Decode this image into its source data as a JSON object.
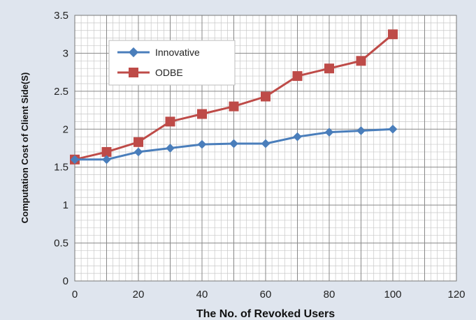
{
  "chart_data": {
    "type": "line",
    "title": "",
    "xlabel": "The No. of Revoked Users",
    "ylabel": "Computation Cost of Client Side(S)",
    "xlim": [
      0,
      120
    ],
    "ylim": [
      0,
      3.5
    ],
    "x_ticks": [
      "0",
      "20",
      "40",
      "60",
      "80",
      "100",
      "120"
    ],
    "y_ticks": [
      "0",
      "0.5",
      "1",
      "1.5",
      "2",
      "2.5",
      "3",
      "3.5"
    ],
    "grid": true,
    "legend_position": "top-left",
    "x": [
      0,
      10,
      20,
      30,
      40,
      50,
      60,
      70,
      80,
      90,
      100
    ],
    "series": [
      {
        "name": "Innovative",
        "color": "#4a7ebb",
        "marker": "diamond",
        "values": [
          1.6,
          1.6,
          1.7,
          1.75,
          1.8,
          1.81,
          1.81,
          1.9,
          1.96,
          1.98,
          2.0
        ]
      },
      {
        "name": "ODBE",
        "color": "#be4b48",
        "marker": "square",
        "values": [
          1.6,
          1.7,
          1.83,
          2.1,
          2.2,
          2.3,
          2.43,
          2.7,
          2.8,
          2.9,
          3.25
        ]
      }
    ]
  }
}
